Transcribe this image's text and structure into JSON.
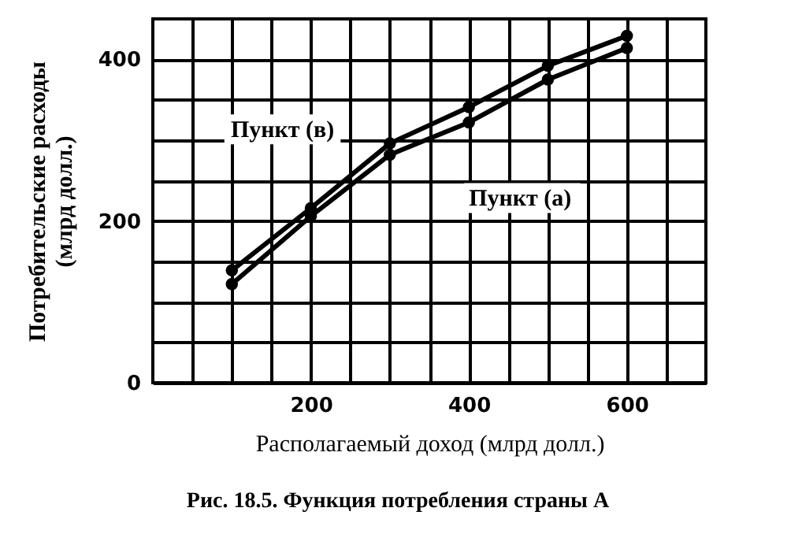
{
  "chart_data": {
    "type": "line",
    "title": "Рис. 18.5. Функция потребления страны А",
    "xlabel": "Располагаемый доход (млрд долл.)",
    "ylabel": "Потребительские расходы\n(млрд долл.)",
    "x": [
      100,
      200,
      300,
      400,
      500,
      600
    ],
    "series": [
      {
        "name": "Пункт (в)",
        "color": "#000000",
        "values": [
          139,
          216,
          296,
          341,
          392,
          429
        ]
      },
      {
        "name": "Пункт (а)",
        "color": "#000000",
        "values": [
          122,
          206,
          282,
          322,
          375,
          414
        ]
      }
    ],
    "xlim": [
      0,
      700
    ],
    "ylim": [
      0,
      450
    ],
    "xticks": [
      {
        "value": 50,
        "label": null
      },
      {
        "value": 100,
        "label": null
      },
      {
        "value": 150,
        "label": null
      },
      200,
      {
        "value": 250,
        "label": null
      },
      {
        "value": 300,
        "label": null
      },
      {
        "value": 350,
        "label": null
      },
      400,
      {
        "value": 450,
        "label": null
      },
      {
        "value": 500,
        "label": null
      },
      {
        "value": 550,
        "label": null
      },
      600,
      {
        "value": 650,
        "label": null
      }
    ],
    "yticks": [
      0,
      {
        "value": 50,
        "label": null
      },
      {
        "value": 100,
        "label": null
      },
      {
        "value": 150,
        "label": null
      },
      200,
      {
        "value": 250,
        "label": null
      },
      {
        "value": 300,
        "label": null
      },
      {
        "value": 350,
        "label": null
      },
      400
    ],
    "grid": true,
    "marker": "circle",
    "line_style": "solid"
  }
}
